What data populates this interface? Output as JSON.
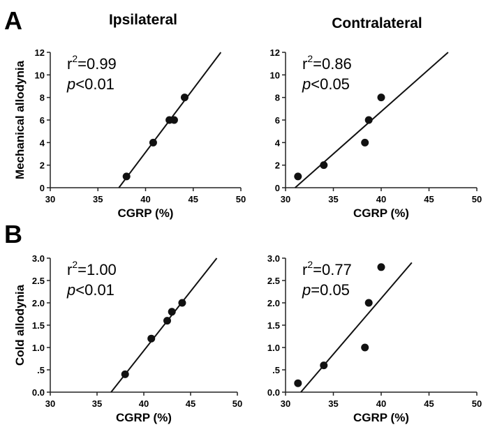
{
  "panels": {
    "a": "A",
    "b": "B"
  },
  "columns": {
    "left": "Ipsilateral",
    "right": "Contralateral"
  },
  "chart_data": [
    {
      "type": "scatter",
      "panel": "A",
      "column": "Ipsilateral",
      "xlabel": "CGRP (%)",
      "ylabel": "Mechanical allodynia",
      "xlim": [
        30,
        50
      ],
      "ylim": [
        0,
        12
      ],
      "xticks": [
        "30",
        "35",
        "40",
        "45",
        "50"
      ],
      "yticks": [
        "0",
        "2",
        "4",
        "6",
        "8",
        "10",
        "12"
      ],
      "x": [
        38.0,
        40.8,
        42.5,
        43.0,
        44.1
      ],
      "y": [
        1,
        4,
        6,
        6,
        8
      ],
      "fit_line": {
        "x": [
          37.2,
          47.9
        ],
        "y": [
          0,
          12
        ]
      },
      "stat1": "=0.99",
      "stat2": "<0.01"
    },
    {
      "type": "scatter",
      "panel": "A",
      "column": "Contralateral",
      "xlabel": "CGRP (%)",
      "ylabel": "",
      "xlim": [
        30,
        50
      ],
      "ylim": [
        0,
        12
      ],
      "xticks": [
        "30",
        "35",
        "40",
        "45",
        "50"
      ],
      "yticks": [
        "0",
        "2",
        "4",
        "6",
        "8",
        "10",
        "12"
      ],
      "x": [
        31.3,
        34.0,
        38.3,
        38.7,
        40.0
      ],
      "y": [
        1,
        2,
        4,
        6,
        8
      ],
      "fit_line": {
        "x": [
          31.0,
          47.0
        ],
        "y": [
          0,
          12
        ]
      },
      "stat1": "=0.86",
      "stat2": "<0.05"
    },
    {
      "type": "scatter",
      "panel": "B",
      "column": "Ipsilateral",
      "xlabel": "CGRP (%)",
      "ylabel": "Cold allodynia",
      "xlim": [
        30,
        50
      ],
      "ylim": [
        0,
        3
      ],
      "xticks": [
        "30",
        "35",
        "40",
        "45",
        "50"
      ],
      "yticks": [
        "0.0",
        ".5",
        "1.0",
        "1.5",
        "2.0",
        "2.5",
        "3.0"
      ],
      "x": [
        38.0,
        40.8,
        42.5,
        43.0,
        44.1
      ],
      "y": [
        0.4,
        1.2,
        1.6,
        1.8,
        2.0
      ],
      "fit_line": {
        "x": [
          36.5,
          47.8
        ],
        "y": [
          0,
          3
        ]
      },
      "stat1": "=1.00",
      "stat2": "<0.01"
    },
    {
      "type": "scatter",
      "panel": "B",
      "column": "Contralateral",
      "xlabel": "CGRP (%)",
      "ylabel": "",
      "xlim": [
        30,
        50
      ],
      "ylim": [
        0,
        3
      ],
      "xticks": [
        "30",
        "35",
        "40",
        "45",
        "50"
      ],
      "yticks": [
        "0.0",
        ".5",
        "1.0",
        "1.5",
        "2.0",
        "2.5",
        "3.0"
      ],
      "x": [
        31.3,
        34.0,
        38.3,
        38.7,
        40.0
      ],
      "y": [
        0.2,
        0.6,
        1.0,
        2.0,
        2.8
      ],
      "fit_line": {
        "x": [
          31.6,
          43.2
        ],
        "y": [
          0,
          2.9
        ]
      },
      "stat1": "=0.77",
      "stat2": "=0.05"
    }
  ]
}
